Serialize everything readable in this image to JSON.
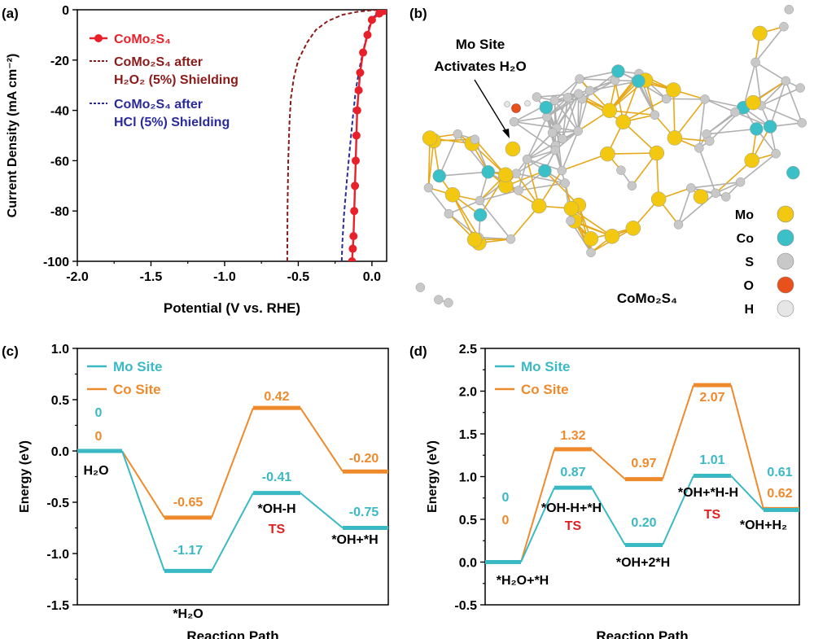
{
  "figure": {
    "panels": {
      "a": {
        "label": "(a)"
      },
      "b": {
        "label": "(b)"
      },
      "c": {
        "label": "(c)"
      },
      "d": {
        "label": "(d)"
      }
    }
  },
  "structure_b": {
    "annotation_line1": "Mo Site",
    "annotation_line2": "Activates H₂O",
    "compound": "CoMo₂S₄",
    "legend": [
      {
        "label": "Mo",
        "color": "#f2c811"
      },
      {
        "label": "Co",
        "color": "#3cc0c8"
      },
      {
        "label": "S",
        "color": "#c8c8c8"
      },
      {
        "label": "O",
        "color": "#e8501c"
      },
      {
        "label": "H",
        "color": "#e6e6e6"
      }
    ]
  },
  "chart_data": [
    {
      "panel": "a",
      "type": "line",
      "xlabel": "Potential (V vs. RHE)",
      "ylabel": "Current Density (mA cm⁻²)",
      "xlim": [
        -2.0,
        0.1
      ],
      "ylim": [
        -100,
        0
      ],
      "xticks": [
        "-2.0",
        "-1.5",
        "-1.0",
        "-0.5",
        "0.0"
      ],
      "yticks": [
        "0",
        "-20",
        "-40",
        "-60",
        "-80",
        "-100"
      ],
      "legend_position": "top-left",
      "series": [
        {
          "name": "CoMo₂S₄",
          "color": "#e8202a",
          "style": "solid-marker",
          "x": [
            -0.135,
            -0.13,
            -0.125,
            -0.12,
            -0.115,
            -0.11,
            -0.105,
            -0.1,
            -0.09,
            -0.08,
            -0.06,
            -0.03,
            0.0,
            0.05,
            0.08,
            0.1
          ],
          "y": [
            -100,
            -95,
            -90,
            -80,
            -70,
            -60,
            -50,
            -40,
            -32,
            -25,
            -17,
            -10,
            -4,
            -1.5,
            -0.5,
            0
          ]
        },
        {
          "name": "CoMo₂S₄ after H₂O₂ (5%) Shielding",
          "color": "#8b1a1a",
          "style": "dashed",
          "x": [
            -0.575,
            -0.573,
            -0.568,
            -0.56,
            -0.55,
            -0.53,
            -0.5,
            -0.44,
            -0.38,
            -0.3,
            -0.2,
            -0.1,
            0.0,
            0.05
          ],
          "y": [
            -100,
            -80,
            -60,
            -45,
            -35,
            -27,
            -20,
            -13,
            -8,
            -4.5,
            -2,
            -0.8,
            -0.2,
            0
          ]
        },
        {
          "name": "CoMo₂S₄ after HCl (5%) Shielding",
          "color": "#2a2a9a",
          "style": "dashed",
          "x": [
            -0.205,
            -0.2,
            -0.19,
            -0.17,
            -0.15,
            -0.13,
            -0.11,
            -0.08,
            -0.05,
            -0.02,
            0.0,
            0.05,
            0.1
          ],
          "y": [
            -100,
            -92,
            -82,
            -68,
            -55,
            -43,
            -32,
            -22,
            -14,
            -7,
            -3.5,
            -1,
            0
          ]
        }
      ]
    },
    {
      "panel": "c",
      "type": "line",
      "xlabel": "Reaction Path",
      "ylabel": "Energy (eV)",
      "ylim": [
        -1.5,
        1.0
      ],
      "yticks": [
        "1.0",
        "0.5",
        "0.0",
        "-0.5",
        "-1.0",
        "-1.5"
      ],
      "legend_position": "top-left",
      "states": [
        "H₂O",
        "*H₂O",
        "*OH-H",
        "*OH+*H"
      ],
      "ts_labels": [
        "",
        "",
        "TS",
        ""
      ],
      "series": [
        {
          "name": "Mo Site",
          "color": "#3ab9c4",
          "values": [
            0,
            -1.17,
            -0.41,
            -0.75
          ],
          "labels": [
            "0",
            "-1.17",
            "-0.41",
            "-0.75"
          ]
        },
        {
          "name": "Co Site",
          "color": "#ef8a2c",
          "values": [
            0,
            -0.65,
            0.42,
            -0.2
          ],
          "labels": [
            "0",
            "-0.65",
            "0.42",
            "-0.20"
          ]
        }
      ]
    },
    {
      "panel": "d",
      "type": "line",
      "xlabel": "Reaction Path",
      "ylabel": "Energy (eV)",
      "ylim": [
        -0.5,
        2.5
      ],
      "yticks": [
        "2.5",
        "2.0",
        "1.5",
        "1.0",
        "0.5",
        "0.0",
        "-0.5"
      ],
      "legend_position": "top-left",
      "states": [
        "*H₂O+*H",
        "*OH-H+*H",
        "*OH+2*H",
        "*OH+*H-H",
        "*OH+H₂"
      ],
      "ts_labels": [
        "",
        "TS",
        "",
        "TS",
        ""
      ],
      "series": [
        {
          "name": "Mo Site",
          "color": "#3ab9c4",
          "values": [
            0,
            0.87,
            0.2,
            1.01,
            0.61
          ],
          "labels": [
            "0",
            "0.87",
            "0.20",
            "1.01",
            "0.61"
          ]
        },
        {
          "name": "Co Site",
          "color": "#ef8a2c",
          "values": [
            0,
            1.32,
            0.97,
            2.07,
            0.62
          ],
          "labels": [
            "0",
            "1.32",
            "0.97",
            "2.07",
            "0.62"
          ]
        }
      ]
    }
  ]
}
